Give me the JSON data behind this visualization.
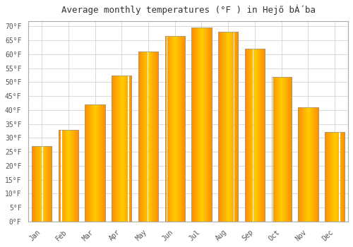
{
  "title": "Average monthly temperatures (°F ) in Hejő bÁ́ba",
  "months": [
    "Jan",
    "Feb",
    "Mar",
    "Apr",
    "May",
    "Jun",
    "Jul",
    "Aug",
    "Sep",
    "Oct",
    "Nov",
    "Dec"
  ],
  "values": [
    27,
    33,
    42,
    52.5,
    61,
    66.5,
    69.5,
    68,
    62,
    52,
    41,
    32
  ],
  "bar_color_center": "#FFB300",
  "bar_color_edge": "#FF8C00",
  "bar_border_color": "#999999",
  "ylim": [
    0,
    72
  ],
  "yticks": [
    0,
    5,
    10,
    15,
    20,
    25,
    30,
    35,
    40,
    45,
    50,
    55,
    60,
    65,
    70
  ],
  "title_fontsize": 9,
  "tick_fontsize": 7,
  "background_color": "#ffffff",
  "plot_bg_color": "#ffffff",
  "grid_color": "#cccccc",
  "border_color": "#aaaaaa"
}
